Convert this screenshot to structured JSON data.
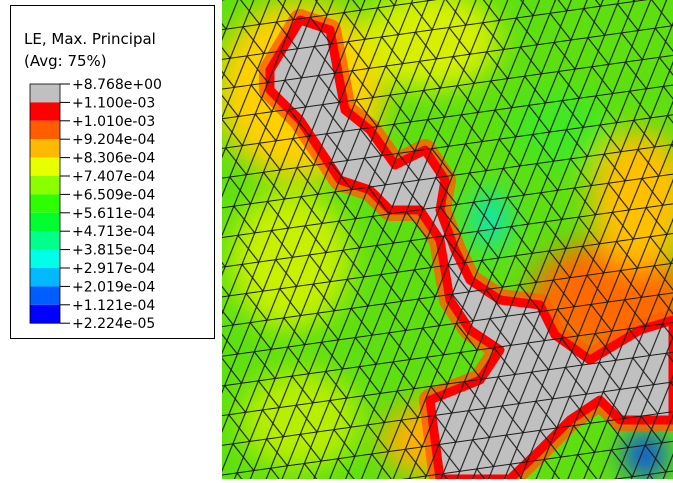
{
  "legend": {
    "title": "LE, Max. Principal",
    "subtitle": "(Avg: 75%)",
    "labels": [
      "+8.768e+00",
      "+1.100e-03",
      "+1.010e-03",
      "+9.204e-04",
      "+8.306e-04",
      "+7.407e-04",
      "+6.509e-04",
      "+5.611e-04",
      "+4.713e-04",
      "+3.815e-04",
      "+2.917e-04",
      "+2.019e-04",
      "+1.121e-04",
      "+2.224e-05"
    ],
    "colors": [
      "#c0c0c0",
      "#ff0000",
      "#ff5d00",
      "#ffb900",
      "#e8ff00",
      "#8bff00",
      "#2eff00",
      "#00ff2e",
      "#00ff8b",
      "#00ffe8",
      "#00b9ff",
      "#005dff",
      "#0000ff"
    ]
  }
}
